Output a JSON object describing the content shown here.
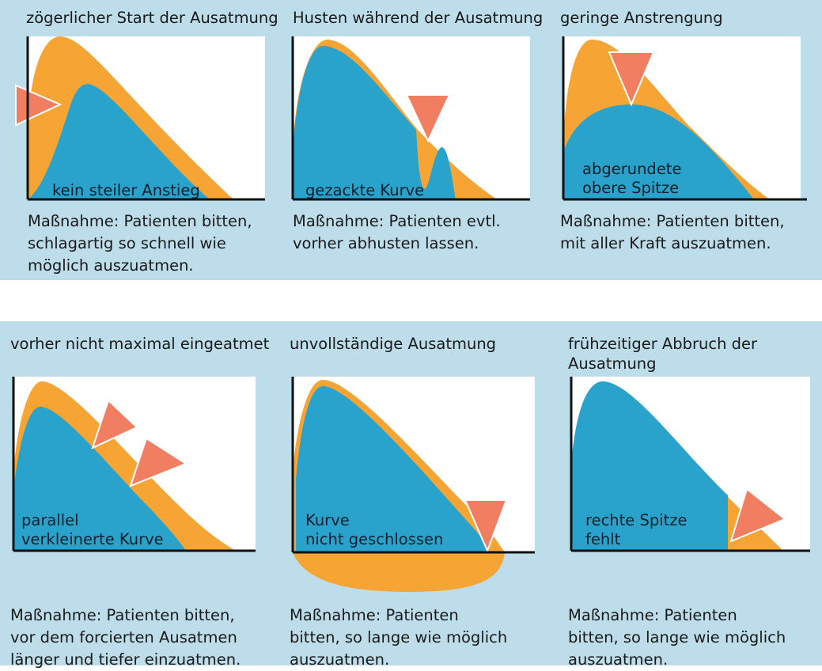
{
  "colors": {
    "background_band": "#bcdde9",
    "plot_bg": "#ffffff",
    "expected_curve": "#f6a534",
    "measured_curve": "#2aa3cc",
    "marker": "#f27e62",
    "axis": "#111111"
  },
  "panels": [
    {
      "title": "zögerlicher Start der Ausatmung",
      "curve_label": "kein steiler Anstieg",
      "measure": "Maßnahme: Patienten bitten,\nschlagartig so schnell wie\nmöglich auszuatmen."
    },
    {
      "title": "Husten während der Ausatmung",
      "curve_label": "gezackte Kurve",
      "measure": "Maßnahme: Patienten evtl.\nvorher abhusten lassen."
    },
    {
      "title": "geringe Anstrengung",
      "curve_label": "abgerundete\nobere Spitze",
      "measure": "Maßnahme: Patienten bitten,\nmit aller Kraft auszuatmen."
    },
    {
      "title": "vorher nicht maximal eingeatmet",
      "curve_label": "parallel\nverkleinerte Kurve",
      "measure": "Maßnahme: Patienten bitten,\nvor dem forcierten Ausatmen\nlänger und tiefer einzuatmen."
    },
    {
      "title": "unvollständige Ausatmung",
      "curve_label": "Kurve\nnicht geschlossen",
      "measure": "Maßnahme: Patienten\nbitten, so lange wie möglich\nauszuatmen."
    },
    {
      "title": "frühzeitiger Abbruch der\nAusatmung",
      "curve_label": "rechte Spitze\nfehlt",
      "measure": "Maßnahme: Patienten\nbitten, so lange wie möglich\nauszuatmen."
    }
  ]
}
